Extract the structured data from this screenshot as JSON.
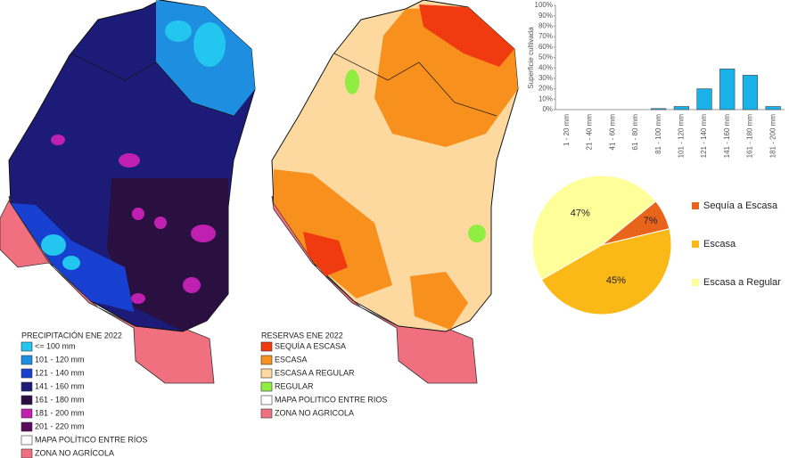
{
  "map1": {
    "legend_title": "PRECIPITACIÓN ENE 2022",
    "legend": [
      {
        "label": "<= 100 mm",
        "color": "#22c6ee"
      },
      {
        "label": "101 - 120 mm",
        "color": "#1e8fe0"
      },
      {
        "label": "121 - 140 mm",
        "color": "#1840d0"
      },
      {
        "label": "141 - 160 mm",
        "color": "#1c1c78"
      },
      {
        "label": "161 - 180 mm",
        "color": "#2a1040"
      },
      {
        "label": "181 - 200 mm",
        "color": "#c020b0"
      },
      {
        "label": "201 - 220 mm",
        "color": "#5a0a5a"
      },
      {
        "label": "MAPA POLÍTICO ENTRE RÍOS",
        "color": "#ffffff"
      },
      {
        "label": "ZONA NO AGRÍCOLA",
        "color": "#f07080"
      }
    ]
  },
  "map2": {
    "legend_title": "RESERVAS ENE 2022",
    "legend": [
      {
        "label": "SEQUÍA A ESCASA",
        "color": "#f03a10"
      },
      {
        "label": "ESCASA",
        "color": "#f8901e"
      },
      {
        "label": "ESCASA A REGULAR",
        "color": "#fdd9a0"
      },
      {
        "label": "REGULAR",
        "color": "#90ee40"
      },
      {
        "label": "MAPA POLITICO ENTRE RIOS",
        "color": "#ffffff"
      },
      {
        "label": "ZONA NO AGRICOLA",
        "color": "#f07080"
      }
    ]
  },
  "chart_data": [
    {
      "type": "bar",
      "y_label": "Superficie cultivada",
      "categories": [
        "1 - 20 mm",
        "21 - 40 mm",
        "41 - 60 mm",
        "61 - 80 mm",
        "81 - 100 mm",
        "101 - 120 mm",
        "121 - 140 mm",
        "141 - 160 mm",
        "161 - 180 mm",
        "181 - 200 mm"
      ],
      "values": [
        0,
        0,
        0,
        0,
        1,
        3,
        20,
        39,
        33,
        3
      ],
      "color": "#1ab0e8",
      "ylim": [
        0,
        100
      ],
      "yticks": [
        {
          "value": 0,
          "label": "0%"
        },
        {
          "value": 10,
          "label": "10%"
        },
        {
          "value": 20,
          "label": "20%"
        },
        {
          "value": 30,
          "label": "30%"
        },
        {
          "value": 40,
          "label": "40%"
        },
        {
          "value": 50,
          "label": "50%"
        },
        {
          "value": 60,
          "label": "60%"
        },
        {
          "value": 70,
          "label": "70%"
        },
        {
          "value": 80,
          "label": "80%"
        },
        {
          "value": 90,
          "label": "90%"
        },
        {
          "value": 100,
          "label": "100%"
        }
      ]
    },
    {
      "type": "pie",
      "categories": [
        "Sequía a Escasa",
        "Escasa",
        "Escasa a Regular"
      ],
      "values": [
        7,
        45,
        47
      ],
      "value_labels": [
        "7%",
        "45%",
        "47%"
      ],
      "colors": [
        "#e8641a",
        "#fbb917",
        "#ffff99"
      ]
    }
  ]
}
